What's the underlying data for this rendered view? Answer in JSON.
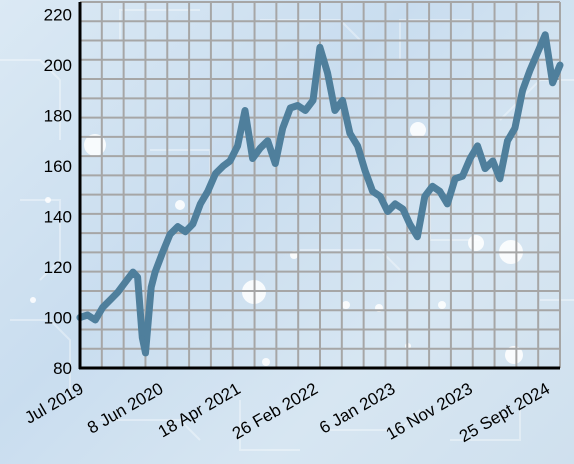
{
  "chart_data": {
    "type": "line",
    "title": "",
    "xlabel": "",
    "ylabel": "",
    "xlim": [
      "2019-07-01",
      "2024-10-31"
    ],
    "ylim": [
      80,
      225
    ],
    "yticks": [
      80,
      100,
      120,
      140,
      160,
      180,
      200,
      220
    ],
    "ytick_labels": [
      "80",
      "100",
      "120",
      "140",
      "160",
      "180",
      "200",
      "220"
    ],
    "xticks": [
      "2019-07-20",
      "2020-06-08",
      "2021-04-18",
      "2022-02-26",
      "2023-01-06",
      "2023-11-16",
      "2024-09-25"
    ],
    "xtick_labels": [
      "Jul 2019",
      "8 Jun 2020",
      "18 Apr 2021",
      "26 Feb 2022",
      "6 Jan 2023",
      "16 Nov 2023",
      "25 Sept 2024"
    ],
    "grid": true,
    "line_color": "#4f7f9c",
    "grid_color": "#a6a6a6",
    "series": [
      {
        "x": [
          "2019-07-01",
          "2019-08-01",
          "2019-09-01",
          "2019-10-01",
          "2019-11-01",
          "2019-12-01",
          "2020-01-01",
          "2020-02-01",
          "2020-02-20",
          "2020-03-10",
          "2020-03-23",
          "2020-04-15",
          "2020-05-01",
          "2020-06-01",
          "2020-07-01",
          "2020-08-01",
          "2020-09-01",
          "2020-10-01",
          "2020-11-01",
          "2020-12-01",
          "2021-01-01",
          "2021-02-01",
          "2021-03-01",
          "2021-04-01",
          "2021-05-01",
          "2021-06-01",
          "2021-07-01",
          "2021-08-01",
          "2021-09-01",
          "2021-10-01",
          "2021-11-01",
          "2021-12-01",
          "2022-01-01",
          "2022-02-01",
          "2022-03-01",
          "2022-04-01",
          "2022-05-01",
          "2022-06-01",
          "2022-07-01",
          "2022-08-01",
          "2022-09-01",
          "2022-10-01",
          "2022-11-01",
          "2022-12-01",
          "2023-01-01",
          "2023-02-01",
          "2023-03-01",
          "2023-04-01",
          "2023-05-01",
          "2023-06-01",
          "2023-07-01",
          "2023-08-01",
          "2023-09-01",
          "2023-10-01",
          "2023-11-01",
          "2023-12-01",
          "2024-01-01",
          "2024-02-01",
          "2024-03-01",
          "2024-04-01",
          "2024-05-01",
          "2024-06-01",
          "2024-07-01",
          "2024-08-01",
          "2024-09-01",
          "2024-10-01",
          "2024-10-31"
        ],
        "y": [
          100,
          101,
          99,
          104,
          107,
          110,
          114,
          118,
          116,
          92,
          86,
          112,
          118,
          126,
          133,
          136,
          134,
          137,
          145,
          150,
          157,
          160,
          162,
          168,
          182,
          163,
          167,
          170,
          161,
          175,
          183,
          184,
          182,
          186,
          207,
          197,
          182,
          186,
          173,
          168,
          158,
          150,
          148,
          142,
          145,
          143,
          137,
          132,
          148,
          152,
          150,
          145,
          155,
          156,
          163,
          168,
          159,
          162,
          155,
          170,
          175,
          190,
          198,
          205,
          212,
          193,
          200
        ]
      }
    ]
  }
}
